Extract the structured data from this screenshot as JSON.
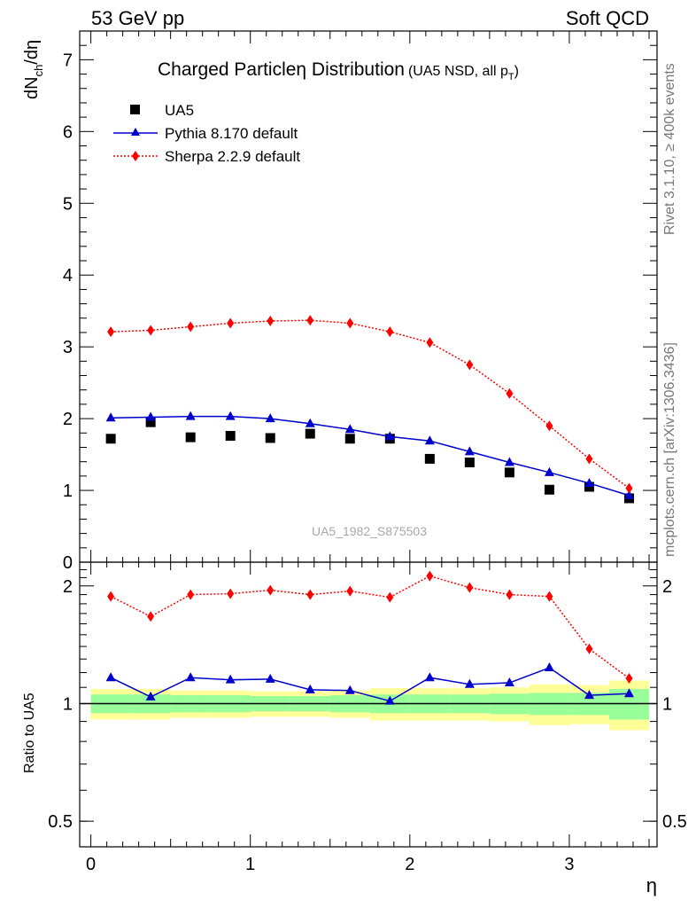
{
  "header": {
    "left": "53 GeV pp",
    "right": "Soft QCD"
  },
  "side_labels": {
    "rivet": "Rivet 3.1.10, ≥ 400k events",
    "mcplots": "mcplots.cern.ch [arXiv:1306.3436]"
  },
  "plot_title": {
    "main": "Charged Particleη Distribution",
    "sub_prefix": "(UA5 NSD, all p",
    "sub_sub": "T",
    "sub_suffix": ")"
  },
  "watermark": "UA5_1982_S875503",
  "legend": [
    {
      "label": "UA5",
      "marker": "square",
      "color": "#000000"
    },
    {
      "label": "Pythia 8.170 default",
      "marker": "triangle",
      "color": "#0000cc"
    },
    {
      "label": "Sherpa 2.2.9 default",
      "marker": "diamond",
      "color": "#ff0000"
    }
  ],
  "ylabel_top": {
    "base": "dN",
    "sub": "ch",
    "tail": "/dη"
  },
  "ylabel_bottom": "Ratio to UA5",
  "xlabel": "η",
  "chart_data": [
    {
      "type": "scatter",
      "panel": "main",
      "ylim": [
        0,
        7.4
      ],
      "xlim": [
        -0.07,
        3.55
      ],
      "x_ticks": [
        "0",
        "1",
        "2",
        "3"
      ],
      "y_ticks": [
        "0",
        "1",
        "2",
        "3",
        "4",
        "5",
        "6",
        "7"
      ],
      "x": [
        0.125,
        0.375,
        0.625,
        0.875,
        1.125,
        1.375,
        1.625,
        1.875,
        2.125,
        2.375,
        2.625,
        2.875,
        3.125,
        3.375
      ],
      "series": [
        {
          "name": "UA5",
          "values": [
            1.72,
            1.95,
            1.74,
            1.76,
            1.73,
            1.79,
            1.72,
            1.72,
            1.44,
            1.39,
            1.25,
            1.01,
            1.05,
            0.89
          ]
        },
        {
          "name": "Pythia 8.170 default",
          "values": [
            2.01,
            2.02,
            2.03,
            2.03,
            2.0,
            1.93,
            1.85,
            1.75,
            1.69,
            1.54,
            1.39,
            1.25,
            1.1,
            0.93
          ]
        },
        {
          "name": "Sherpa 2.2.9 default",
          "values": [
            3.21,
            3.23,
            3.28,
            3.33,
            3.36,
            3.37,
            3.33,
            3.21,
            3.06,
            2.75,
            2.35,
            1.9,
            1.44,
            1.03
          ]
        }
      ]
    },
    {
      "type": "line",
      "panel": "ratio",
      "ylim": [
        0.43,
        2.3
      ],
      "y_ticks": [
        "0.5",
        "1",
        "2"
      ],
      "x": [
        0.125,
        0.375,
        0.625,
        0.875,
        1.125,
        1.375,
        1.625,
        1.875,
        2.125,
        2.375,
        2.625,
        2.875,
        3.125,
        3.375
      ],
      "series": [
        {
          "name": "Pythia 8.170 default",
          "values": [
            1.165,
            1.04,
            1.165,
            1.15,
            1.155,
            1.085,
            1.08,
            1.015,
            1.165,
            1.12,
            1.13,
            1.235,
            1.05,
            1.06
          ]
        },
        {
          "name": "Sherpa 2.2.9 default",
          "values": [
            1.88,
            1.67,
            1.9,
            1.91,
            1.95,
            1.9,
            1.94,
            1.87,
            2.12,
            1.98,
            1.9,
            1.88,
            1.38,
            1.16
          ]
        }
      ],
      "band_inner": [
        [
          0.945,
          1.055
        ],
        [
          0.945,
          1.055
        ],
        [
          0.95,
          1.05
        ],
        [
          0.95,
          1.05
        ],
        [
          0.955,
          1.045
        ],
        [
          0.955,
          1.045
        ],
        [
          0.95,
          1.05
        ],
        [
          0.945,
          1.055
        ],
        [
          0.945,
          1.055
        ],
        [
          0.945,
          1.055
        ],
        [
          0.94,
          1.06
        ],
        [
          0.935,
          1.065
        ],
        [
          0.935,
          1.065
        ],
        [
          0.91,
          1.09
        ]
      ],
      "band_outer": [
        [
          0.91,
          1.09
        ],
        [
          0.91,
          1.09
        ],
        [
          0.92,
          1.08
        ],
        [
          0.92,
          1.08
        ],
        [
          0.925,
          1.075
        ],
        [
          0.925,
          1.075
        ],
        [
          0.92,
          1.08
        ],
        [
          0.905,
          1.095
        ],
        [
          0.905,
          1.095
        ],
        [
          0.905,
          1.095
        ],
        [
          0.9,
          1.1
        ],
        [
          0.88,
          1.12
        ],
        [
          0.885,
          1.115
        ],
        [
          0.855,
          1.145
        ]
      ]
    }
  ]
}
